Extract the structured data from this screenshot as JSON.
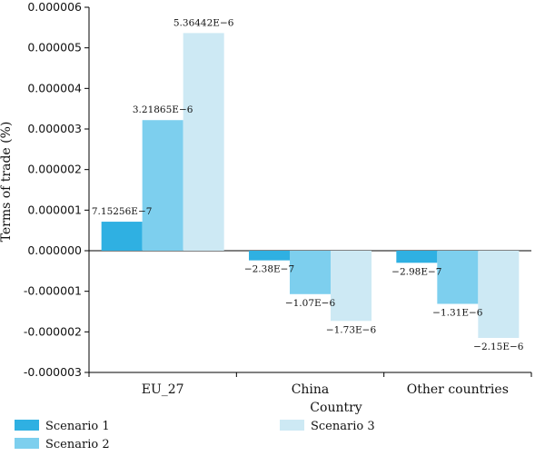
{
  "chart_data": {
    "type": "bar",
    "title": "",
    "xlabel": "Country",
    "ylabel": "Terms of trade (%)",
    "categories": [
      "EU_27",
      "China",
      "Other countries"
    ],
    "ylim": [
      -3e-06,
      6e-06
    ],
    "yticks": [
      {
        "value": 6e-06,
        "label": "0.000006"
      },
      {
        "value": 5e-06,
        "label": "0.000005"
      },
      {
        "value": 4e-06,
        "label": "0.000004"
      },
      {
        "value": 3e-06,
        "label": "0.000003"
      },
      {
        "value": 2e-06,
        "label": "0.000002"
      },
      {
        "value": 1e-06,
        "label": "0.000001"
      },
      {
        "value": 0,
        "label": "0.000000"
      },
      {
        "value": -1e-06,
        "label": "-0.000001"
      },
      {
        "value": -2e-06,
        "label": "-0.000002"
      },
      {
        "value": -3e-06,
        "label": "-0.000003"
      }
    ],
    "series": [
      {
        "name": "Scenario 1",
        "color": "#2fb0e2",
        "values": [
          7.15256e-07,
          -2.38e-07,
          -2.98e-07
        ],
        "labels": [
          "7.15256E−7",
          "−2.38E−7",
          "−2.98E−7"
        ]
      },
      {
        "name": "Scenario 2",
        "color": "#7dcfee",
        "values": [
          3.21865e-06,
          -1.07e-06,
          -1.31e-06
        ],
        "labels": [
          "3.21865E−6",
          "−1.07E−6",
          "−1.31E−6"
        ]
      },
      {
        "name": "Scenario 3",
        "color": "#cde9f4",
        "values": [
          5.36442e-06,
          -1.73e-06,
          -2.15e-06
        ],
        "labels": [
          "5.36442E−6",
          "−1.73E−6",
          "−2.15E−6"
        ]
      }
    ],
    "grid": false,
    "legend_position": "bottom"
  }
}
